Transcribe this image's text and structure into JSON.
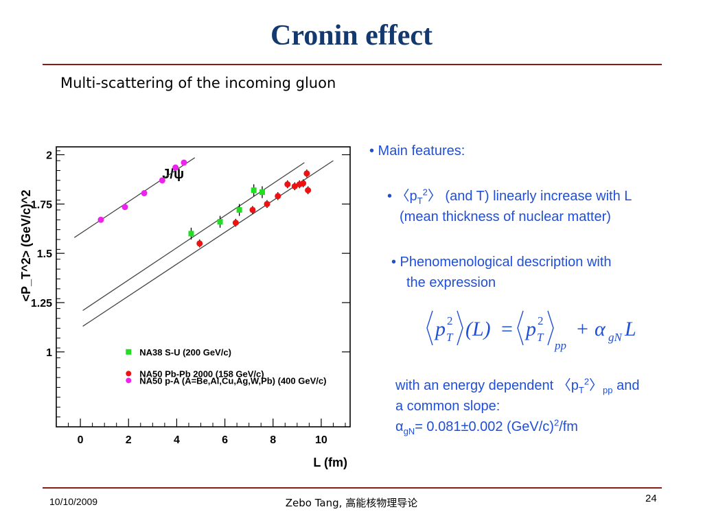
{
  "slide": {
    "title": "Cronin effect",
    "subtitle": "Multi-scattering of the incoming gluon",
    "footer_date": "10/10/2009",
    "footer_center": "Zebo Tang, 高能核物理导论",
    "page_number": "24"
  },
  "text": {
    "main_features": "• Main features:",
    "pt2_open": "• 〈p",
    "pt2_sub": "T",
    "pt2_sup": "2",
    "pt2_rest": "〉 (and T) linearly increase with L",
    "mean_thickness": "(mean thickness of nuclear matter)",
    "phenom": "• Phenomenological description  with",
    "expression": "the expression",
    "with_energy_pre": "with an energy dependent 〈p",
    "with_energy_sub": "T",
    "with_energy_sup": "2",
    "with_energy_close": "〉",
    "with_energy_pp": "pp",
    "with_energy_post": " and",
    "common_slope": "a common slope:",
    "alpha": "α",
    "alpha_sub": "gN",
    "alpha_value": "= 0.081±0.002 (GeV/c)",
    "alpha_sup": "2",
    "alpha_unit": "/fm"
  },
  "formula": {
    "lhs_p": "p",
    "lhs_sup": "2",
    "lhs_sub": "T",
    "lhs_arg": "(L)",
    "equals": "=",
    "rhs_p": "p",
    "rhs_sup": "2",
    "rhs_sub": "T",
    "rhs_pp": "pp",
    "plus": "+",
    "alpha": "α",
    "alpha_sub": "gN",
    "L": "L"
  },
  "chart_data": {
    "type": "scatter",
    "title": "J/ψ",
    "xlabel": "L (fm)",
    "ylabel": "<P_T^2> (GeV/c)^2",
    "xlim": [
      -1,
      11.2
    ],
    "ylim": [
      0.62,
      2.04
    ],
    "xticks": [
      "0",
      "2",
      "4",
      "6",
      "8",
      "10"
    ],
    "yticks": [
      "1",
      "1.25",
      "1.5",
      "1.75",
      "2"
    ],
    "ytick_values": [
      1,
      1.25,
      1.5,
      1.75,
      2
    ],
    "xtick_values": [
      0,
      2,
      4,
      6,
      8,
      10
    ],
    "series": [
      {
        "name": "NA38 S-U (200 GeV/c)",
        "color": "#22dd22",
        "marker": "square",
        "x": [
          4.6,
          5.8,
          6.6,
          7.2,
          7.55
        ],
        "y": [
          1.6,
          1.66,
          1.72,
          1.82,
          1.81
        ],
        "yerr": [
          0.03,
          0.03,
          0.03,
          0.03,
          0.03
        ]
      },
      {
        "name": "NA50 Pb-Pb 2000 (158 GeV/c)",
        "color": "#ee1111",
        "marker": "circle",
        "x": [
          4.95,
          6.45,
          7.15,
          7.75,
          8.2,
          8.6,
          8.9,
          9.1,
          9.25,
          9.4,
          9.45
        ],
        "y": [
          1.55,
          1.655,
          1.72,
          1.75,
          1.79,
          1.85,
          1.84,
          1.85,
          1.855,
          1.905,
          1.82
        ],
        "yerr": [
          0.02,
          0.02,
          0.02,
          0.02,
          0.02,
          0.02,
          0.02,
          0.02,
          0.02,
          0.02,
          0.02
        ]
      },
      {
        "name": "NA50  p-A (A=Be,Al,Cu,Ag,W,Pb) (400 GeV/c)",
        "color": "#ee22ee",
        "marker": "circle",
        "x": [
          0.85,
          1.85,
          2.65,
          3.4,
          3.95,
          4.3
        ],
        "y": [
          1.67,
          1.735,
          1.805,
          1.87,
          1.935,
          1.96
        ],
        "yerr": [
          0.008,
          0.008,
          0.008,
          0.008,
          0.008,
          0.008
        ]
      }
    ],
    "fit_lines": [
      {
        "x": [
          -0.25,
          4.75
        ],
        "y": [
          1.58,
          1.985
        ]
      },
      {
        "x": [
          0.1,
          9.3
        ],
        "y": [
          1.21,
          1.96
        ]
      },
      {
        "x": [
          0.1,
          10.5
        ],
        "y": [
          1.13,
          1.97
        ]
      }
    ],
    "legend_position": "bottom-right"
  }
}
